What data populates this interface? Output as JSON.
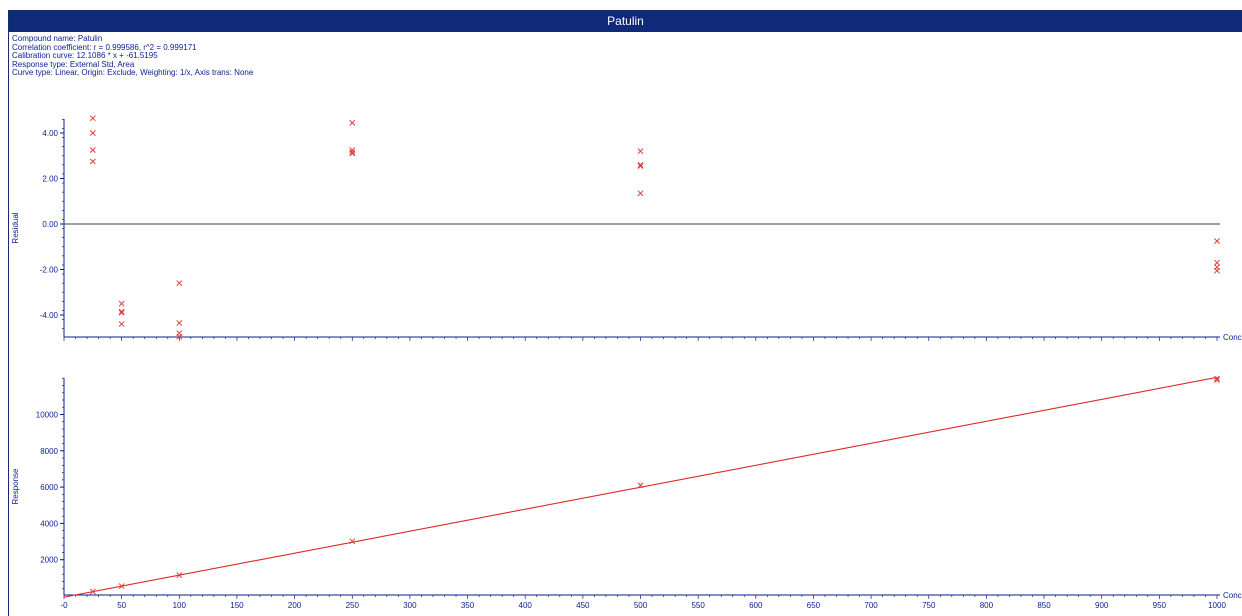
{
  "window": {
    "title": "Patulin"
  },
  "info": {
    "lines": [
      "Compound name: Patulin",
      "Correlation coefficient: r = 0.999586, r^2 = 0.999171",
      "Calibration curve: 12.1086 * x + -61.5195",
      "Response type: External Std, Area",
      "Curve type: Linear, Origin: Exclude, Weighting: 1/x, Axis trans: None"
    ]
  },
  "colors": {
    "title_bar": "#0f2a78",
    "text": "#0a1f8f",
    "marker": "#e24040",
    "line": "#e02828",
    "axis": "#0a1f8f"
  },
  "chart_data": [
    {
      "type": "scatter",
      "ylabel": "Residual",
      "xlabel": "Conc",
      "xlim": [
        0,
        1000
      ],
      "ylim": [
        -5,
        5
      ],
      "y_ticks": [
        "4.00",
        "2.00",
        "0.00",
        "-2.00",
        "-4.00"
      ],
      "y_tick_values": [
        4,
        2,
        0,
        -2,
        -4
      ],
      "zero_line": true,
      "points": [
        {
          "x": 25,
          "y": 4.65
        },
        {
          "x": 25,
          "y": 4.0
        },
        {
          "x": 25,
          "y": 3.25
        },
        {
          "x": 25,
          "y": 2.75
        },
        {
          "x": 50,
          "y": -3.5
        },
        {
          "x": 50,
          "y": -3.85
        },
        {
          "x": 50,
          "y": -3.9
        },
        {
          "x": 50,
          "y": -4.4
        },
        {
          "x": 100,
          "y": -2.6
        },
        {
          "x": 100,
          "y": -4.35
        },
        {
          "x": 100,
          "y": -4.8
        },
        {
          "x": 100,
          "y": -4.95
        },
        {
          "x": 250,
          "y": 4.45
        },
        {
          "x": 250,
          "y": 3.25
        },
        {
          "x": 250,
          "y": 3.15
        },
        {
          "x": 250,
          "y": 3.1
        },
        {
          "x": 500,
          "y": 3.2
        },
        {
          "x": 500,
          "y": 2.6
        },
        {
          "x": 500,
          "y": 2.55
        },
        {
          "x": 500,
          "y": 1.35
        },
        {
          "x": 1000,
          "y": -0.75
        },
        {
          "x": 1000,
          "y": -1.7
        },
        {
          "x": 1000,
          "y": -1.9
        },
        {
          "x": 1000,
          "y": -2.05
        }
      ]
    },
    {
      "type": "line",
      "ylabel": "Response",
      "xlabel": "Conc",
      "xlim": [
        0,
        1000
      ],
      "ylim": [
        0,
        12000
      ],
      "x_ticks": [
        "-0",
        "50",
        "100",
        "150",
        "200",
        "250",
        "300",
        "350",
        "400",
        "450",
        "500",
        "550",
        "600",
        "650",
        "700",
        "750",
        "800",
        "850",
        "900",
        "950",
        "1000"
      ],
      "x_tick_values": [
        0,
        50,
        100,
        150,
        200,
        250,
        300,
        350,
        400,
        450,
        500,
        550,
        600,
        650,
        700,
        750,
        800,
        850,
        900,
        950,
        1000
      ],
      "y_ticks": [
        "10000",
        "8000",
        "6000",
        "4000",
        "2000"
      ],
      "y_tick_values": [
        10000,
        8000,
        6000,
        4000,
        2000
      ],
      "fit": {
        "slope": 12.1086,
        "intercept": -61.5195
      },
      "points": [
        {
          "x": 25,
          "y": 245
        },
        {
          "x": 50,
          "y": 545
        },
        {
          "x": 100,
          "y": 1150
        },
        {
          "x": 250,
          "y": 3015
        },
        {
          "x": 500,
          "y": 6095
        },
        {
          "x": 1000,
          "y": 11980
        },
        {
          "x": 1000,
          "y": 11900
        }
      ]
    }
  ]
}
